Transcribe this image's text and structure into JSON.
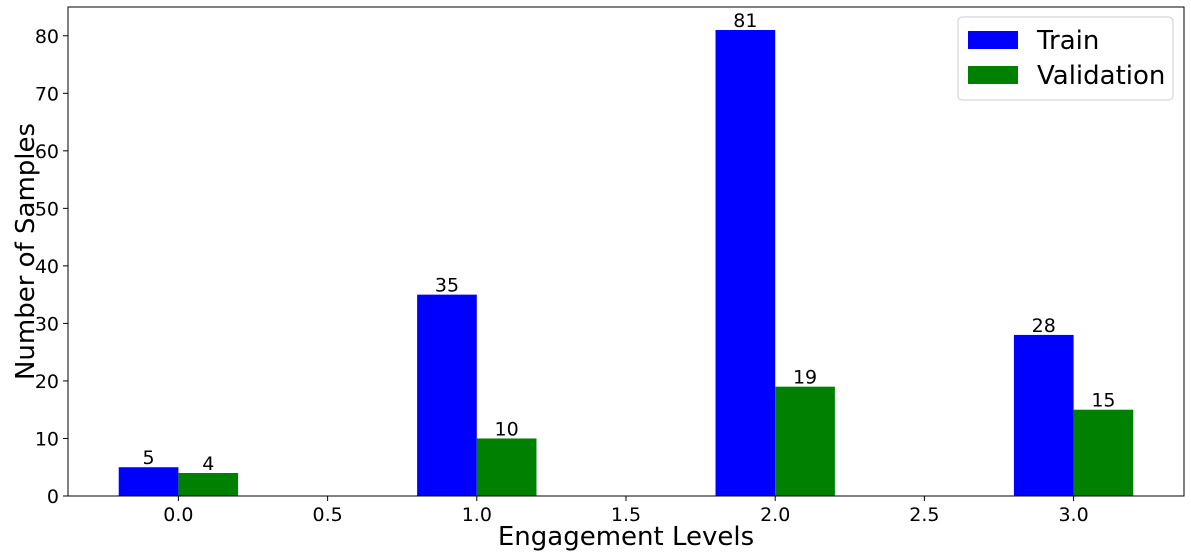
{
  "chart_data": {
    "type": "bar",
    "title": "",
    "xlabel": "Engagement Levels",
    "ylabel": "Number of Samples",
    "categories": [
      0.0,
      1.0,
      2.0,
      3.0
    ],
    "series": [
      {
        "name": "Train",
        "values": [
          5,
          35,
          81,
          28
        ],
        "color": "#0000ff"
      },
      {
        "name": "Validation",
        "values": [
          4,
          10,
          19,
          15
        ],
        "color": "#008000"
      }
    ],
    "xlim": [
      -0.37,
      3.37
    ],
    "ylim": [
      0,
      85
    ],
    "xticks": [
      "0.0",
      "0.5",
      "1.0",
      "1.5",
      "2.0",
      "2.5",
      "3.0"
    ],
    "yticks": [
      "0",
      "10",
      "20",
      "30",
      "40",
      "50",
      "60",
      "70",
      "80"
    ],
    "bar_width": 0.2,
    "grid": false,
    "legend_position": "top-right"
  }
}
